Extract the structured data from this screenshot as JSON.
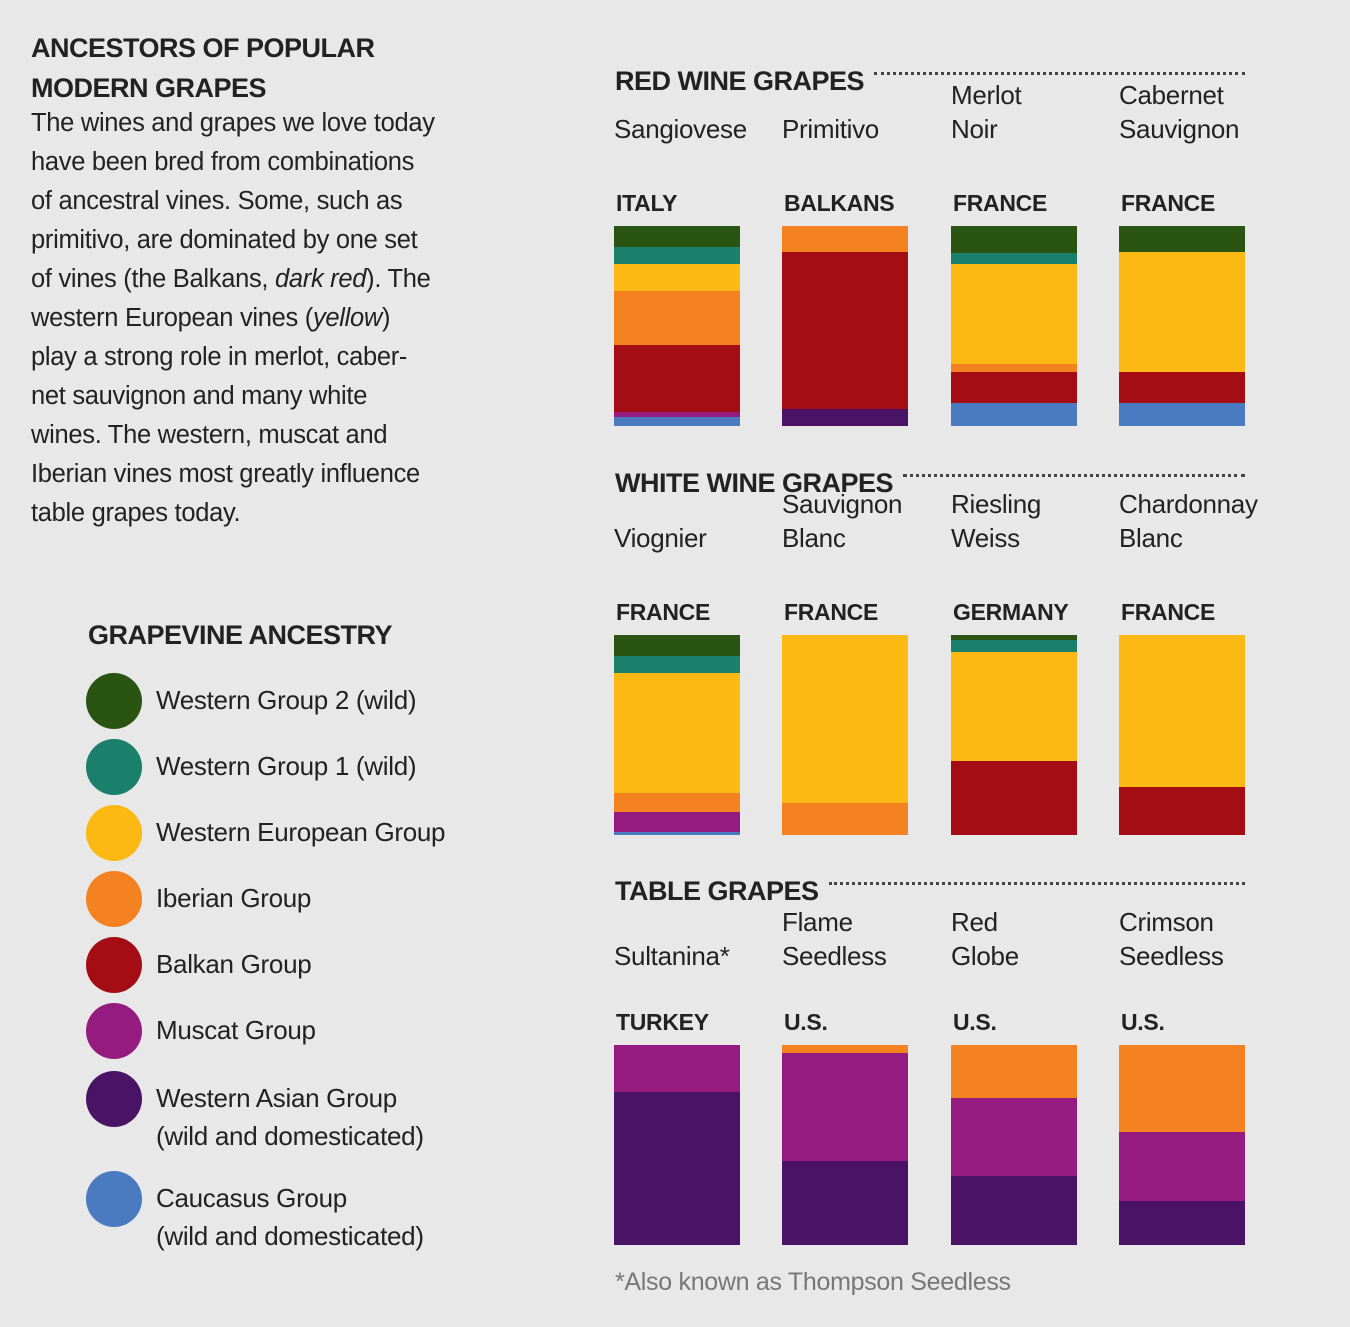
{
  "title_lines": [
    "ANCESTORS OF POPULAR",
    "MODERN GRAPES"
  ],
  "intro_lines": [
    "The wines and grapes we love today",
    "have been bred from combinations",
    "of ancestral vines. Some, such as",
    "primitivo, are dominated by one set",
    "of vines (the Balkans, |dark red|). The",
    "western European vines (|yellow|)",
    "play a strong role in merlot, caber-",
    "net sauvignon and many white",
    "wines. The western, muscat and",
    "Iberian vines most greatly influence",
    "table grapes today."
  ],
  "legend": {
    "title": "GRAPEVINE ANCESTRY",
    "items": [
      {
        "key": "wg2",
        "label": "Western Group 2 (wild)",
        "color": "#2a5412"
      },
      {
        "key": "wg1",
        "label": "Western Group 1 (wild)",
        "color": "#1a806b"
      },
      {
        "key": "we",
        "label": "Western European Group",
        "color": "#fdb913"
      },
      {
        "key": "ib",
        "label": "Iberian Group",
        "color": "#f58220"
      },
      {
        "key": "ba",
        "label": "Balkan Group",
        "color": "#a50d14"
      },
      {
        "key": "mu",
        "label": "Muscat Group",
        "color": "#951b81"
      },
      {
        "key": "wa",
        "label": "Western Asian Group\n(wild and domesticated)",
        "color": "#4a1366"
      },
      {
        "key": "ca",
        "label": "Caucasus Group\n(wild and domesticated)",
        "color": "#4a7abf"
      }
    ]
  },
  "chart_data": {
    "type": "bar",
    "stacked": true,
    "unit": "percent of ancestry",
    "sections": [
      {
        "title": "RED WINE GRAPES",
        "grapes": [
          {
            "name": "Sangiovese",
            "country": "ITALY",
            "values": {
              "wg2": 10.5,
              "wg1": 8.5,
              "we": 13.5,
              "ib": 27,
              "ba": 33.5,
              "mu": 2.5,
              "ca": 4.5
            }
          },
          {
            "name": "Primitivo",
            "country": "BALKANS",
            "values": {
              "ib": 13,
              "ba": 78.5,
              "wa": 8.5
            }
          },
          {
            "name": "Merlot\nNoir",
            "country": "FRANCE",
            "values": {
              "wg2": 13.5,
              "wg1": 5.5,
              "we": 50,
              "ib": 4,
              "ba": 15.5,
              "ca": 11.5
            }
          },
          {
            "name": "Cabernet\nSauvignon",
            "country": "FRANCE",
            "values": {
              "wg2": 13,
              "we": 60,
              "ba": 15.5,
              "ca": 11.5
            }
          }
        ]
      },
      {
        "title": "WHITE WINE GRAPES",
        "grapes": [
          {
            "name": "Viognier",
            "country": "FRANCE",
            "values": {
              "wg2": 10.5,
              "wg1": 8.5,
              "we": 60,
              "ib": 9.5,
              "mu": 10,
              "ca": 1.5
            }
          },
          {
            "name": "Sauvignon\nBlanc",
            "country": "FRANCE",
            "values": {
              "we": 84,
              "ib": 16
            }
          },
          {
            "name": "Riesling\nWeiss",
            "country": "GERMANY",
            "values": {
              "wg2": 2.5,
              "wg1": 6,
              "we": 54.5,
              "ba": 37
            }
          },
          {
            "name": "Chardonnay\nBlanc",
            "country": "FRANCE",
            "values": {
              "we": 76,
              "ba": 24
            }
          }
        ]
      },
      {
        "title": "TABLE GRAPES",
        "grapes": [
          {
            "name": "Sultanina*",
            "country": "TURKEY",
            "values": {
              "mu": 23.5,
              "wa": 76.5
            }
          },
          {
            "name": "Flame\nSeedless",
            "country": "U.S.",
            "values": {
              "ib": 4,
              "mu": 54,
              "wa": 42
            }
          },
          {
            "name": "Red\nGlobe",
            "country": "U.S.",
            "values": {
              "ib": 26.5,
              "mu": 39,
              "wa": 34.5
            }
          },
          {
            "name": "Crimson\nSeedless",
            "country": "U.S.",
            "values": {
              "ib": 43.5,
              "mu": 34.5,
              "wa": 22
            }
          }
        ]
      }
    ]
  },
  "footnote": "*Also known as Thompson Seedless"
}
